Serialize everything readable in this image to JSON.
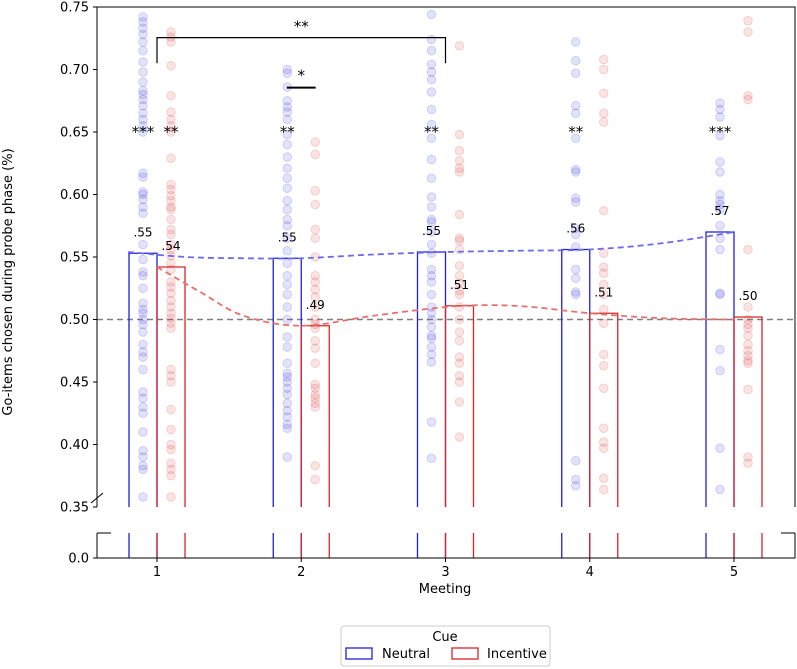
{
  "chart_data": {
    "type": "bar",
    "title": "",
    "xlabel": "Meeting",
    "ylabel": "Go-items chosen during probe phase (%)",
    "x": [
      1,
      2,
      3,
      4,
      5
    ],
    "x_tick_labels": [
      "1",
      "2",
      "3",
      "4",
      "5"
    ],
    "ylim": [
      0.35,
      0.75
    ],
    "ylim_lower_panel": [
      0.0,
      0.02
    ],
    "y_ticks": [
      0.35,
      0.4,
      0.45,
      0.5,
      0.55,
      0.6,
      0.65,
      0.7,
      0.75
    ],
    "y_tick_labels": [
      "0.35",
      "0.40",
      "0.45",
      "0.50",
      "0.55",
      "0.60",
      "0.65",
      "0.70",
      "0.75"
    ],
    "y_tick_lower_label": "0.0",
    "reference_line": 0.5,
    "axis_break": true,
    "colors": {
      "Neutral": "#1f1fe0",
      "Incentive": "#d62728",
      "Neutral_trend": "#6b6bf0",
      "Incentive_trend": "#e8706c",
      "reference": "#808080"
    },
    "series": [
      {
        "name": "Neutral",
        "values": [
          0.553,
          0.549,
          0.554,
          0.556,
          0.57
        ],
        "labels": [
          ".55",
          ".55",
          ".55",
          ".56",
          ".57"
        ],
        "significance": [
          "***",
          "**",
          "**",
          "**",
          "***"
        ],
        "points": [
          [
            0.742,
            0.738,
            0.733,
            0.728,
            0.722,
            0.715,
            0.706,
            0.698,
            0.69,
            0.683,
            0.68,
            0.676,
            0.671,
            0.665,
            0.66,
            0.655,
            0.65,
            0.617,
            0.614,
            0.602,
            0.6,
            0.596,
            0.59,
            0.585,
            0.56,
            0.548,
            0.538,
            0.535,
            0.525,
            0.513,
            0.508,
            0.505,
            0.5,
            0.496,
            0.49,
            0.48,
            0.474,
            0.47,
            0.46,
            0.442,
            0.437,
            0.43,
            0.425,
            0.41,
            0.395,
            0.39,
            0.383,
            0.38,
            0.358
          ],
          [
            0.7,
            0.697,
            0.686,
            0.675,
            0.67,
            0.666,
            0.66,
            0.648,
            0.64,
            0.63,
            0.621,
            0.613,
            0.605,
            0.595,
            0.588,
            0.58,
            0.575,
            0.565,
            0.555,
            0.545,
            0.535,
            0.528,
            0.52,
            0.51,
            0.5,
            0.486,
            0.478,
            0.465,
            0.457,
            0.454,
            0.45,
            0.445,
            0.44,
            0.433,
            0.427,
            0.422,
            0.416,
            0.413,
            0.39
          ],
          [
            0.744,
            0.724,
            0.715,
            0.704,
            0.698,
            0.692,
            0.682,
            0.668,
            0.656,
            0.645,
            0.628,
            0.613,
            0.598,
            0.59,
            0.58,
            0.578,
            0.57,
            0.56,
            0.553,
            0.54,
            0.535,
            0.53,
            0.52,
            0.51,
            0.505,
            0.5,
            0.494,
            0.487,
            0.485,
            0.478,
            0.472,
            0.466,
            0.418,
            0.389
          ],
          [
            0.722,
            0.707,
            0.697,
            0.671,
            0.665,
            0.645,
            0.62,
            0.618,
            0.597,
            0.594,
            0.573,
            0.568,
            0.558,
            0.54,
            0.533,
            0.522,
            0.52,
            0.387,
            0.372,
            0.367
          ],
          [
            0.673,
            0.668,
            0.662,
            0.647,
            0.626,
            0.618,
            0.6,
            0.595,
            0.592,
            0.588,
            0.575,
            0.565,
            0.556,
            0.521,
            0.52,
            0.476,
            0.459,
            0.397,
            0.364
          ]
        ]
      },
      {
        "name": "Incentive",
        "values": [
          0.542,
          0.495,
          0.511,
          0.505,
          0.502
        ],
        "labels": [
          ".54",
          ".49",
          ".51",
          ".51",
          ".50"
        ],
        "significance": [
          "**",
          "",
          "",
          "",
          ""
        ],
        "points": [
          [
            0.73,
            0.726,
            0.722,
            0.703,
            0.679,
            0.666,
            0.66,
            0.655,
            0.65,
            0.629,
            0.608,
            0.604,
            0.599,
            0.595,
            0.59,
            0.588,
            0.58,
            0.572,
            0.568,
            0.56,
            0.556,
            0.551,
            0.545,
            0.54,
            0.53,
            0.526,
            0.521,
            0.515,
            0.51,
            0.505,
            0.501,
            0.497,
            0.493,
            0.46,
            0.455,
            0.45,
            0.428,
            0.412,
            0.4,
            0.396,
            0.385,
            0.38,
            0.375,
            0.358
          ],
          [
            0.642,
            0.632,
            0.603,
            0.592,
            0.572,
            0.565,
            0.55,
            0.535,
            0.53,
            0.524,
            0.518,
            0.51,
            0.5,
            0.496,
            0.493,
            0.483,
            0.477,
            0.465,
            0.448,
            0.445,
            0.44,
            0.437,
            0.433,
            0.43,
            0.383,
            0.372
          ],
          [
            0.719,
            0.648,
            0.635,
            0.627,
            0.621,
            0.618,
            0.584,
            0.565,
            0.563,
            0.556,
            0.543,
            0.535,
            0.529,
            0.523,
            0.52,
            0.51,
            0.5,
            0.49,
            0.483,
            0.47,
            0.465,
            0.455,
            0.45,
            0.434,
            0.406
          ],
          [
            0.708,
            0.7,
            0.681,
            0.665,
            0.658,
            0.587,
            0.553,
            0.542,
            0.537,
            0.528,
            0.52,
            0.508,
            0.497,
            0.472,
            0.463,
            0.445,
            0.413,
            0.402,
            0.397,
            0.373,
            0.364
          ],
          [
            0.739,
            0.73,
            0.679,
            0.676,
            0.556,
            0.51,
            0.5,
            0.496,
            0.493,
            0.487,
            0.48,
            0.475,
            0.471,
            0.467,
            0.465,
            0.444,
            0.39,
            0.385
          ]
        ]
      }
    ],
    "trend_lines": {
      "Neutral": [
        [
          0.8,
          0.554
        ],
        [
          1.2,
          0.55
        ],
        [
          1.6,
          0.549
        ],
        [
          2.0,
          0.549
        ],
        [
          2.5,
          0.552
        ],
        [
          3.0,
          0.554
        ],
        [
          3.5,
          0.555
        ],
        [
          4.0,
          0.556
        ],
        [
          4.5,
          0.561
        ],
        [
          5.0,
          0.57
        ]
      ],
      "Incentive": [
        [
          1.0,
          0.542
        ],
        [
          1.3,
          0.522
        ],
        [
          1.6,
          0.503
        ],
        [
          2.0,
          0.495
        ],
        [
          2.5,
          0.503
        ],
        [
          3.0,
          0.51
        ],
        [
          3.3,
          0.5115
        ],
        [
          3.6,
          0.51
        ],
        [
          4.0,
          0.505
        ],
        [
          4.5,
          0.501
        ],
        [
          5.0,
          0.5
        ]
      ]
    },
    "brackets": [
      {
        "from_x": 1.0,
        "to_x": 3.0,
        "y": 0.7255,
        "label": "**"
      },
      {
        "from_x": 1.9,
        "to_x": 2.1,
        "y": 0.6855,
        "label": "*"
      }
    ],
    "legend": {
      "title": "Cue",
      "position": "bottom-center",
      "entries": [
        "Neutral",
        "Incentive"
      ]
    }
  }
}
